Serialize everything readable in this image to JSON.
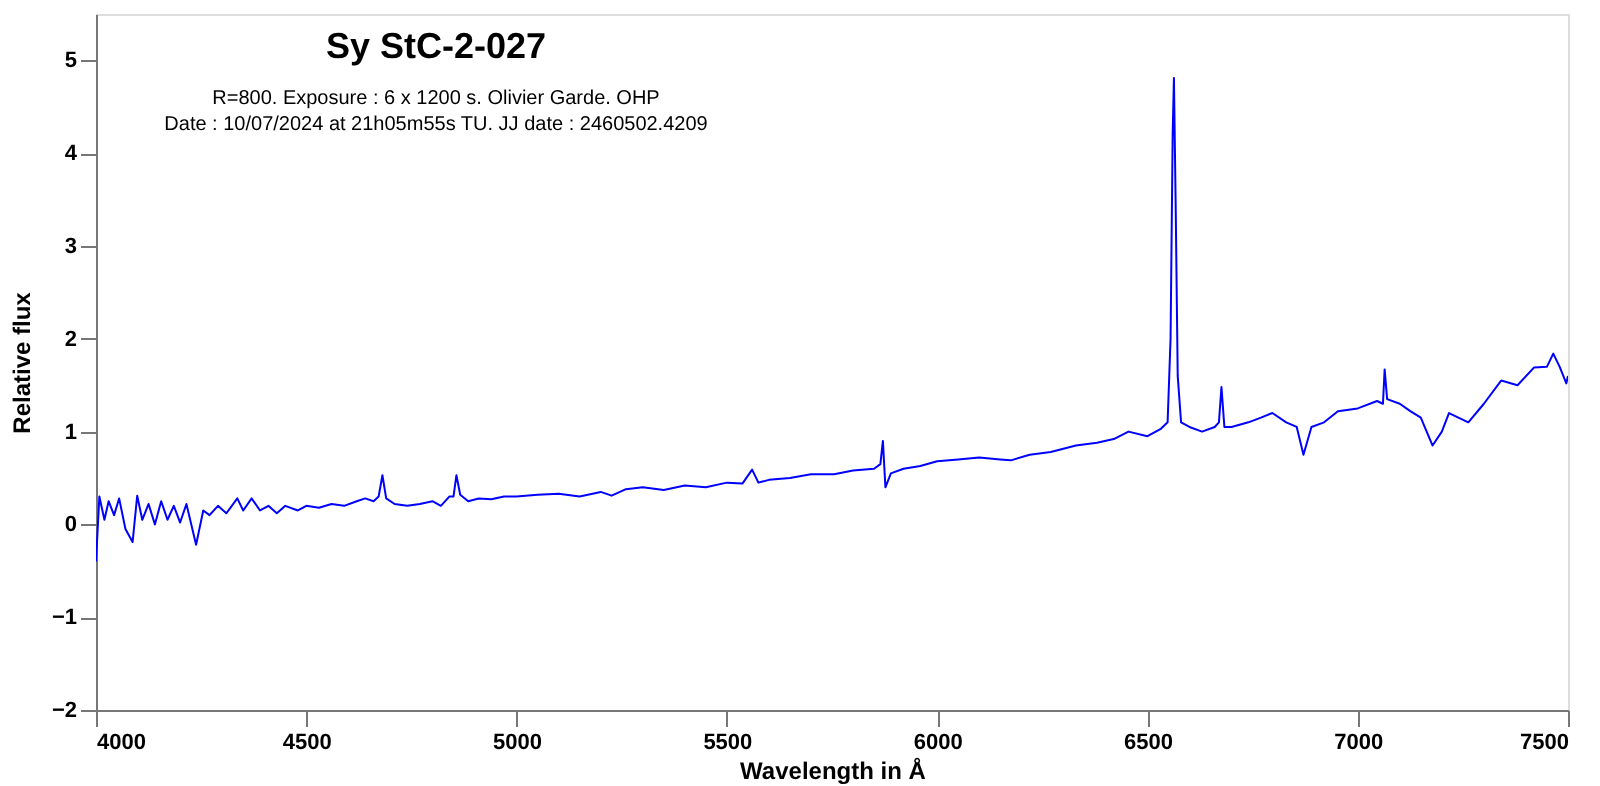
{
  "chart_data": {
    "type": "line",
    "title": "Sy StC-2-027",
    "subtitle": "R=800. Exposure : 6 x 1200 s. Olivier Garde. OHP\nDate : 10/07/2024 at 21h05m55s TU. JJ date : 2460502.4209",
    "xlabel": "Wavelength in Å",
    "ylabel": "Relative flux",
    "xlim": [
      4000,
      7500
    ],
    "ylim": [
      -2,
      5.5
    ],
    "xticks": [
      4000,
      4500,
      5000,
      5500,
      6000,
      6500,
      7000,
      7500
    ],
    "yticks": [
      -2,
      -1,
      0,
      1,
      2,
      3,
      4,
      5
    ],
    "grid": false,
    "marker": "none",
    "line_style": "solid",
    "x": [
      4000,
      4008,
      4020,
      4030,
      4043,
      4055,
      4070,
      4087,
      4098,
      4110,
      4125,
      4140,
      4155,
      4170,
      4185,
      4200,
      4215,
      4238,
      4255,
      4270,
      4290,
      4310,
      4336,
      4350,
      4370,
      4390,
      4410,
      4430,
      4450,
      4480,
      4500,
      4530,
      4560,
      4590,
      4620,
      4640,
      4660,
      4672,
      4681,
      4690,
      4710,
      4740,
      4770,
      4800,
      4820,
      4840,
      4850,
      4857,
      4866,
      4885,
      4910,
      4940,
      4970,
      5000,
      5050,
      5100,
      5150,
      5200,
      5226,
      5260,
      5300,
      5350,
      5400,
      5450,
      5500,
      5537,
      5560,
      5575,
      5600,
      5650,
      5700,
      5755,
      5800,
      5850,
      5865,
      5871,
      5877,
      5890,
      5920,
      5960,
      6000,
      6050,
      6100,
      6150,
      6175,
      6220,
      6270,
      6330,
      6380,
      6420,
      6455,
      6500,
      6532,
      6548,
      6555,
      6560,
      6563,
      6567,
      6572,
      6580,
      6600,
      6630,
      6660,
      6670,
      6676,
      6683,
      6700,
      6740,
      6770,
      6797,
      6830,
      6855,
      6871,
      6890,
      6920,
      6953,
      7000,
      7046,
      7060,
      7064,
      7070,
      7100,
      7125,
      7150,
      7178,
      7200,
      7217,
      7263,
      7300,
      7341,
      7380,
      7419,
      7450,
      7465,
      7480,
      7496,
      7500
    ],
    "series": [
      {
        "color": "#0000ff",
        "values": [
          -0.4,
          0.3,
          0.05,
          0.25,
          0.1,
          0.28,
          -0.05,
          -0.19,
          0.31,
          0.05,
          0.22,
          0.0,
          0.25,
          0.05,
          0.2,
          0.02,
          0.22,
          -0.22,
          0.15,
          0.1,
          0.2,
          0.12,
          0.28,
          0.15,
          0.28,
          0.15,
          0.2,
          0.12,
          0.2,
          0.15,
          0.2,
          0.18,
          0.22,
          0.2,
          0.25,
          0.28,
          0.25,
          0.3,
          0.53,
          0.28,
          0.22,
          0.2,
          0.22,
          0.25,
          0.2,
          0.3,
          0.3,
          0.53,
          0.32,
          0.25,
          0.28,
          0.27,
          0.3,
          0.3,
          0.32,
          0.33,
          0.3,
          0.35,
          0.31,
          0.38,
          0.4,
          0.37,
          0.42,
          0.4,
          0.45,
          0.44,
          0.59,
          0.45,
          0.48,
          0.5,
          0.54,
          0.54,
          0.58,
          0.6,
          0.65,
          0.9,
          0.4,
          0.55,
          0.6,
          0.63,
          0.68,
          0.7,
          0.72,
          0.7,
          0.69,
          0.75,
          0.78,
          0.85,
          0.88,
          0.92,
          1.0,
          0.95,
          1.03,
          1.1,
          2.0,
          4.2,
          4.81,
          3.5,
          1.6,
          1.1,
          1.05,
          1.0,
          1.05,
          1.1,
          1.48,
          1.05,
          1.05,
          1.1,
          1.15,
          1.2,
          1.1,
          1.05,
          0.75,
          1.05,
          1.1,
          1.22,
          1.25,
          1.33,
          1.3,
          1.67,
          1.35,
          1.3,
          1.22,
          1.15,
          0.85,
          1.0,
          1.2,
          1.1,
          1.3,
          1.55,
          1.5,
          1.69,
          1.7,
          1.84,
          1.7,
          1.52,
          1.6
        ]
      }
    ]
  }
}
